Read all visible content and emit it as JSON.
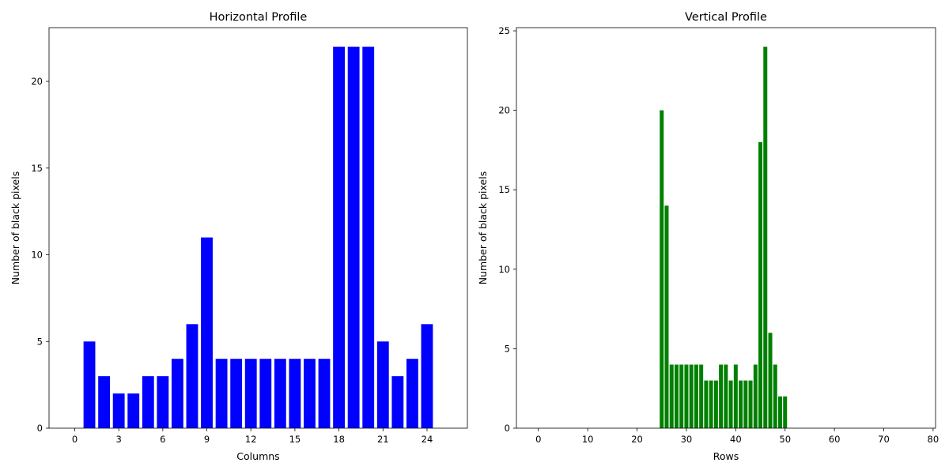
{
  "chart_data": [
    {
      "type": "bar",
      "title": "Horizontal Profile",
      "xlabel": "Columns",
      "ylabel": "Number of black pixels",
      "color": "#0000ff",
      "x": [
        1,
        2,
        3,
        4,
        5,
        6,
        7,
        8,
        9,
        10,
        11,
        12,
        13,
        14,
        15,
        16,
        17,
        18,
        19,
        20,
        21,
        22,
        23,
        24
      ],
      "values": [
        5,
        3,
        2,
        2,
        3,
        3,
        4,
        6,
        11,
        4,
        4,
        4,
        4,
        4,
        4,
        4,
        4,
        22,
        22,
        22,
        5,
        3,
        4,
        6
      ],
      "xlim": [
        -1.75,
        26.75
      ],
      "ylim": [
        0,
        23.1
      ],
      "xticks": [
        0,
        3,
        6,
        9,
        12,
        15,
        18,
        21,
        24
      ],
      "yticks": [
        0,
        5,
        10,
        15,
        20
      ],
      "grid": false
    },
    {
      "type": "bar",
      "title": "Vertical Profile",
      "xlabel": "Rows",
      "ylabel": "Number of black pixels",
      "color": "#008000",
      "x": [
        25,
        26,
        27,
        28,
        29,
        30,
        31,
        32,
        33,
        34,
        35,
        36,
        37,
        38,
        39,
        40,
        41,
        42,
        43,
        44,
        45,
        46,
        47,
        48,
        49,
        50
      ],
      "values": [
        20,
        14,
        4,
        4,
        4,
        4,
        4,
        4,
        4,
        3,
        3,
        3,
        4,
        4,
        3,
        4,
        3,
        3,
        3,
        4,
        18,
        24,
        6,
        4,
        2,
        2
      ],
      "xlim": [
        -4.45,
        80.5
      ],
      "ylim": [
        0,
        25.2
      ],
      "xticks": [
        0,
        10,
        20,
        30,
        40,
        50,
        60,
        70,
        80
      ],
      "yticks": [
        0,
        5,
        10,
        15,
        20,
        25
      ],
      "grid": false
    }
  ]
}
